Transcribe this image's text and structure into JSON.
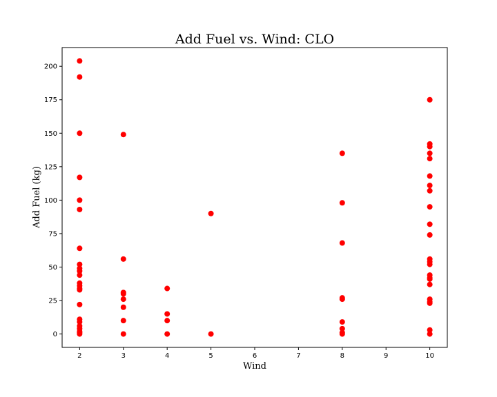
{
  "chart_data": {
    "type": "scatter",
    "title": "Add Fuel vs. Wind: CLO",
    "xlabel": "Wind",
    "ylabel": "Add Fuel (kg)",
    "xlim": [
      1.6,
      10.4
    ],
    "ylim": [
      -10,
      214
    ],
    "xticks": [
      2,
      3,
      4,
      5,
      6,
      7,
      8,
      9,
      10
    ],
    "yticks": [
      0,
      25,
      50,
      75,
      100,
      125,
      150,
      175,
      200
    ],
    "grid": false,
    "marker_color": "#ff0000",
    "series": [
      {
        "points": [
          {
            "x": 2,
            "y": 204
          },
          {
            "x": 2,
            "y": 192
          },
          {
            "x": 2,
            "y": 150
          },
          {
            "x": 2,
            "y": 117
          },
          {
            "x": 2,
            "y": 100
          },
          {
            "x": 2,
            "y": 93
          },
          {
            "x": 2,
            "y": 64
          },
          {
            "x": 2,
            "y": 52
          },
          {
            "x": 2,
            "y": 49
          },
          {
            "x": 2,
            "y": 47
          },
          {
            "x": 2,
            "y": 44
          },
          {
            "x": 2,
            "y": 38
          },
          {
            "x": 2,
            "y": 36
          },
          {
            "x": 2,
            "y": 34
          },
          {
            "x": 2,
            "y": 33
          },
          {
            "x": 2,
            "y": 22
          },
          {
            "x": 2,
            "y": 11
          },
          {
            "x": 2,
            "y": 9
          },
          {
            "x": 2,
            "y": 6
          },
          {
            "x": 2,
            "y": 4
          },
          {
            "x": 2,
            "y": 2
          },
          {
            "x": 2,
            "y": 1
          },
          {
            "x": 2,
            "y": 0
          },
          {
            "x": 3,
            "y": 149
          },
          {
            "x": 3,
            "y": 56
          },
          {
            "x": 3,
            "y": 31
          },
          {
            "x": 3,
            "y": 30
          },
          {
            "x": 3,
            "y": 26
          },
          {
            "x": 3,
            "y": 20
          },
          {
            "x": 3,
            "y": 10
          },
          {
            "x": 3,
            "y": 0
          },
          {
            "x": 4,
            "y": 34
          },
          {
            "x": 4,
            "y": 15
          },
          {
            "x": 4,
            "y": 10
          },
          {
            "x": 4,
            "y": 0
          },
          {
            "x": 5,
            "y": 90
          },
          {
            "x": 5,
            "y": 0
          },
          {
            "x": 8,
            "y": 135
          },
          {
            "x": 8,
            "y": 98
          },
          {
            "x": 8,
            "y": 68
          },
          {
            "x": 8,
            "y": 27
          },
          {
            "x": 8,
            "y": 26
          },
          {
            "x": 8,
            "y": 9
          },
          {
            "x": 8,
            "y": 4
          },
          {
            "x": 8,
            "y": 1
          },
          {
            "x": 8,
            "y": 0
          },
          {
            "x": 10,
            "y": 175
          },
          {
            "x": 10,
            "y": 142
          },
          {
            "x": 10,
            "y": 140
          },
          {
            "x": 10,
            "y": 135
          },
          {
            "x": 10,
            "y": 131
          },
          {
            "x": 10,
            "y": 118
          },
          {
            "x": 10,
            "y": 111
          },
          {
            "x": 10,
            "y": 107
          },
          {
            "x": 10,
            "y": 95
          },
          {
            "x": 10,
            "y": 82
          },
          {
            "x": 10,
            "y": 74
          },
          {
            "x": 10,
            "y": 56
          },
          {
            "x": 10,
            "y": 54
          },
          {
            "x": 10,
            "y": 52
          },
          {
            "x": 10,
            "y": 44
          },
          {
            "x": 10,
            "y": 42
          },
          {
            "x": 10,
            "y": 41
          },
          {
            "x": 10,
            "y": 37
          },
          {
            "x": 10,
            "y": 26
          },
          {
            "x": 10,
            "y": 24
          },
          {
            "x": 10,
            "y": 23
          },
          {
            "x": 10,
            "y": 3
          },
          {
            "x": 10,
            "y": 0
          }
        ]
      }
    ]
  }
}
